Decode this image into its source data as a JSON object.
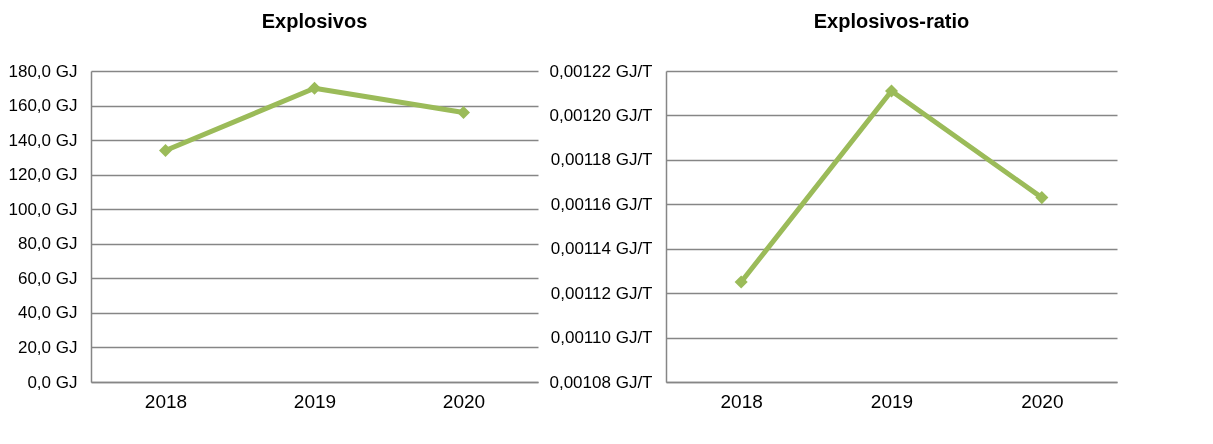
{
  "chart_data": [
    {
      "type": "line",
      "title": "Explosivos",
      "categories": [
        "2018",
        "2019",
        "2020"
      ],
      "series": [
        {
          "color": "#9bbb59",
          "values": [
            134,
            170,
            156
          ]
        }
      ],
      "ylim": [
        0,
        180
      ],
      "yticks": [
        {
          "value": 0,
          "label": "0,0 GJ"
        },
        {
          "value": 20,
          "label": "20,0 GJ"
        },
        {
          "value": 40,
          "label": "40,0 GJ"
        },
        {
          "value": 60,
          "label": "60,0 GJ"
        },
        {
          "value": 80,
          "label": "80,0 GJ"
        },
        {
          "value": 100,
          "label": "100,0 GJ"
        },
        {
          "value": 120,
          "label": "120,0 GJ"
        },
        {
          "value": 140,
          "label": "140,0 GJ"
        },
        {
          "value": 160,
          "label": "160,0 GJ"
        },
        {
          "value": 180,
          "label": "180,0 GJ"
        }
      ],
      "grid": "y",
      "marker": "diamond",
      "legend": false
    },
    {
      "type": "line",
      "title": "Explosivos-ratio",
      "categories": [
        "2018",
        "2019",
        "2020"
      ],
      "series": [
        {
          "color": "#9bbb59",
          "values": [
            0.001125,
            0.001211,
            0.001163
          ]
        }
      ],
      "ylim": [
        0.00108,
        0.00122
      ],
      "yticks": [
        {
          "value": 0.00108,
          "label": "0,00108 GJ/T"
        },
        {
          "value": 0.0011,
          "label": "0,00110 GJ/T"
        },
        {
          "value": 0.00112,
          "label": "0,00112 GJ/T"
        },
        {
          "value": 0.00114,
          "label": "0,00114 GJ/T"
        },
        {
          "value": 0.00116,
          "label": "0,00116 GJ/T"
        },
        {
          "value": 0.00118,
          "label": "0,00118 GJ/T"
        },
        {
          "value": 0.0012,
          "label": "0,00120 GJ/T"
        },
        {
          "value": 0.00122,
          "label": "0,00122 GJ/T"
        }
      ],
      "grid": "y",
      "marker": "diamond",
      "legend": false
    }
  ]
}
